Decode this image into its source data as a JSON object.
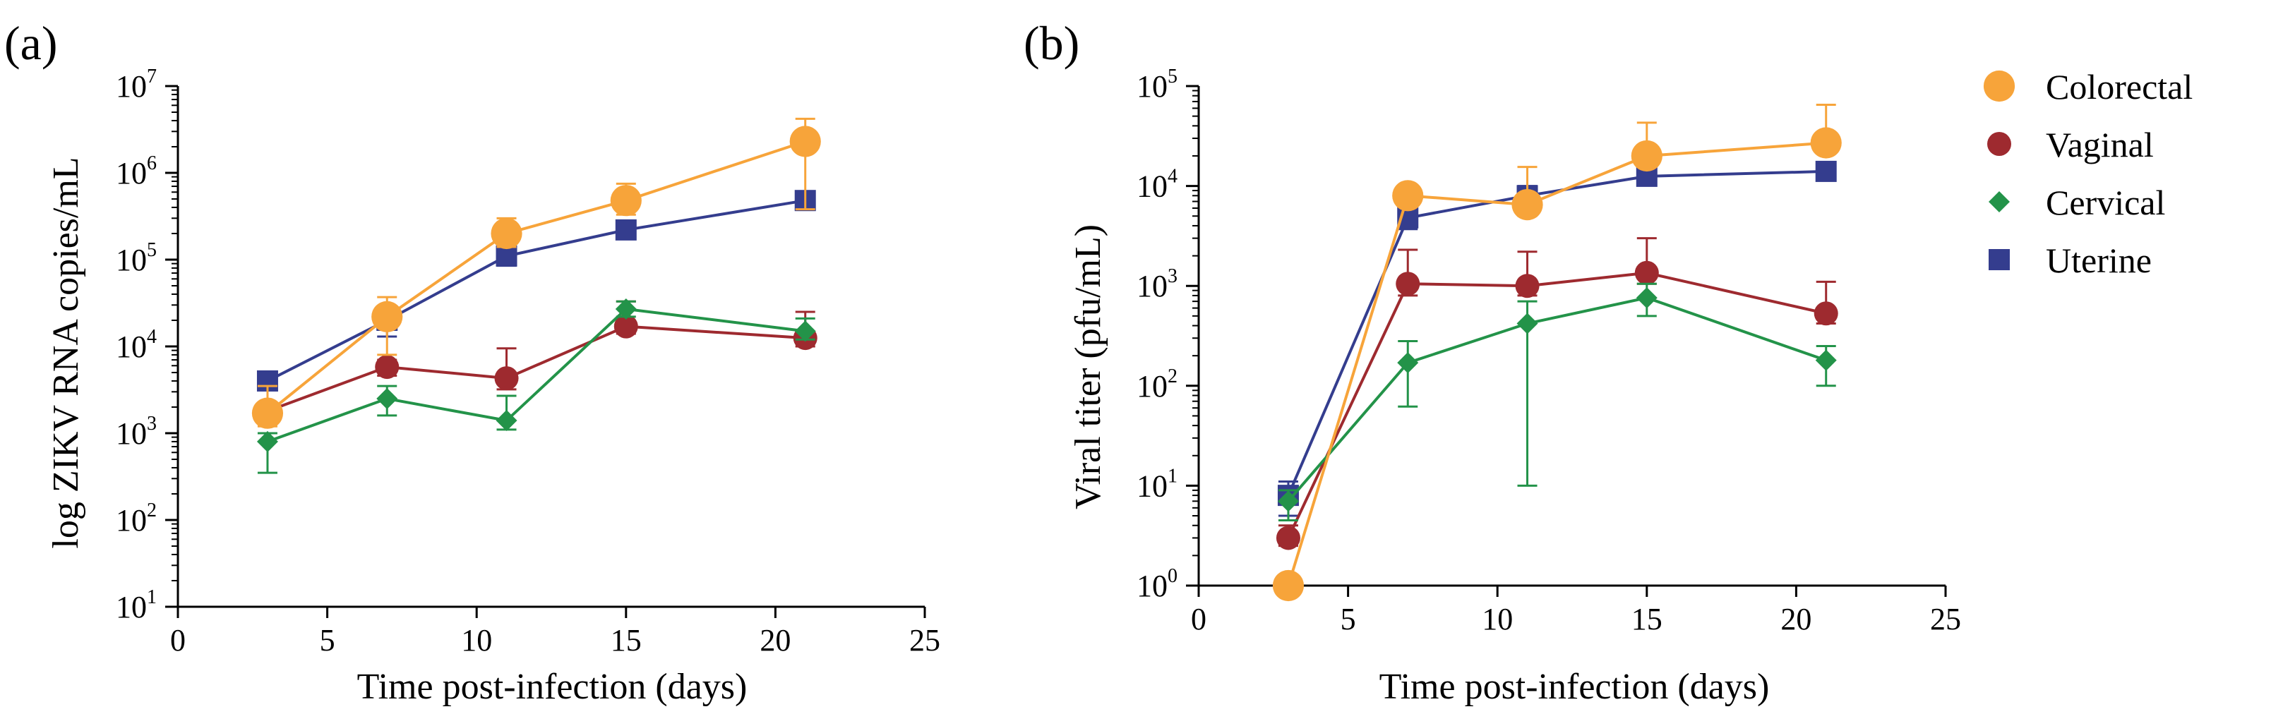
{
  "chart_data": [
    {
      "panel": "(a)",
      "type": "scatter",
      "mode": "lines+markers+errorbars",
      "title": "",
      "xlabel": "Time post-infection (days)",
      "ylabel": "log ZIKV RNA copies/mL",
      "xlim": [
        0,
        25
      ],
      "ylim_log10": [
        1,
        7
      ],
      "yscale": "log",
      "x_ticks": [
        0,
        5,
        10,
        15,
        20,
        25
      ],
      "y_ticks_exp": [
        1,
        2,
        3,
        4,
        5,
        6,
        7
      ],
      "y_tick_base": "10",
      "series": [
        {
          "name": "Uterine",
          "marker": "square",
          "color": "#343d8e",
          "x": [
            3,
            7,
            11,
            15,
            21
          ],
          "y": [
            4000,
            20000,
            110000,
            220000,
            480000
          ],
          "err_up": [
            5000,
            28000,
            140000,
            260000,
            560000
          ],
          "err_down": [
            3200,
            13000,
            85000,
            180000,
            380000
          ]
        },
        {
          "name": "Vaginal",
          "marker": "circle",
          "color": "#9e2a2f",
          "x": [
            3,
            7,
            11,
            15,
            21
          ],
          "y": [
            1800,
            5800,
            4300,
            17000,
            12500
          ],
          "err_up": [
            2200,
            7000,
            9500,
            33000,
            25000
          ],
          "err_down": [
            1500,
            4600,
            3200,
            14000,
            10000
          ]
        },
        {
          "name": "Cervical",
          "marker": "diamond",
          "color": "#239349",
          "x": [
            3,
            7,
            11,
            15,
            21
          ],
          "y": [
            800,
            2500,
            1400,
            27000,
            15000
          ],
          "err_up": [
            1000,
            3500,
            2700,
            33000,
            21000
          ],
          "err_down": [
            350,
            1600,
            1100,
            22000,
            12000
          ]
        },
        {
          "name": "Colorectal",
          "marker": "circle",
          "color": "#f7a43a",
          "x": [
            3,
            7,
            11,
            15,
            21
          ],
          "y": [
            1700,
            22000,
            200000,
            480000,
            2300000
          ],
          "err_up": [
            3500,
            37000,
            300000,
            750000,
            4200000
          ],
          "err_down": [
            1200,
            8000,
            140000,
            330000,
            380000
          ]
        }
      ]
    },
    {
      "panel": "(b)",
      "type": "scatter",
      "mode": "lines+markers+errorbars",
      "title": "",
      "xlabel": "Time post-infection (days)",
      "ylabel": "Viral titer (pfu/mL)",
      "xlim": [
        0,
        25
      ],
      "ylim_log10": [
        0,
        5
      ],
      "yscale": "log",
      "x_ticks": [
        0,
        5,
        10,
        15,
        20,
        25
      ],
      "y_ticks_exp": [
        0,
        1,
        2,
        3,
        4,
        5
      ],
      "y_tick_base": "10",
      "series": [
        {
          "name": "Uterine",
          "marker": "square",
          "color": "#343d8e",
          "x": [
            3,
            7,
            11,
            15,
            21
          ],
          "y": [
            8,
            4800,
            8000,
            12500,
            14000
          ],
          "err_up": [
            11,
            6500,
            10000,
            15000,
            16000
          ],
          "err_down": [
            5,
            3700,
            6500,
            10500,
            12000
          ]
        },
        {
          "name": "Vaginal",
          "marker": "circle",
          "color": "#9e2a2f",
          "x": [
            3,
            7,
            11,
            15,
            21
          ],
          "y": [
            3,
            1050,
            1000,
            1350,
            530
          ],
          "err_up": [
            4,
            2300,
            2200,
            3000,
            1100
          ],
          "err_down": [
            2.5,
            800,
            800,
            1050,
            420
          ]
        },
        {
          "name": "Cervical",
          "marker": "diamond",
          "color": "#239349",
          "x": [
            3,
            7,
            11,
            15,
            21
          ],
          "y": [
            7,
            170,
            420,
            760,
            180
          ],
          "err_up": [
            9,
            280,
            700,
            1050,
            250
          ],
          "err_down": [
            4.5,
            62,
            10,
            500,
            100
          ]
        },
        {
          "name": "Colorectal",
          "marker": "circle",
          "color": "#f7a43a",
          "x": [
            3,
            7,
            11,
            15,
            21
          ],
          "y": [
            1,
            8000,
            6500,
            20000,
            27000
          ],
          "err_up": [
            1,
            9500,
            15500,
            43000,
            65000
          ],
          "err_down": [
            1,
            7000,
            5000,
            16000,
            22000
          ]
        }
      ]
    }
  ],
  "legend": {
    "placement": "right",
    "entries": [
      {
        "name": "Colorectal",
        "marker": "circle",
        "color": "#f7a43a"
      },
      {
        "name": "Vaginal",
        "marker": "circle",
        "color": "#9e2a2f"
      },
      {
        "name": "Cervical",
        "marker": "diamond",
        "color": "#239349"
      },
      {
        "name": "Uterine",
        "marker": "square",
        "color": "#343d8e"
      }
    ]
  }
}
